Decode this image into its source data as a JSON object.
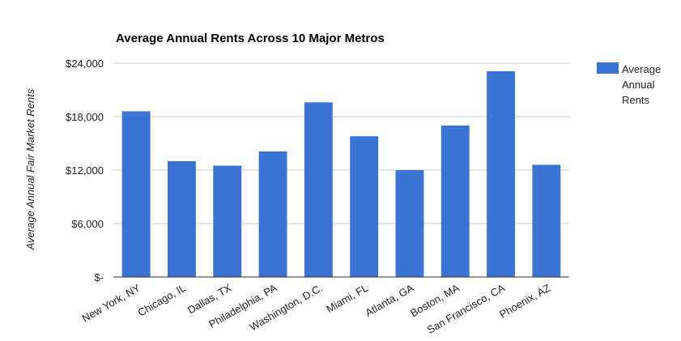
{
  "chart_data": {
    "type": "bar",
    "title": "Average Annual Rents Across 10 Major Metros",
    "xlabel": "",
    "ylabel": "Average Annual Fair Market Rents",
    "categories": [
      "New York, NY",
      "Chicago, IL",
      "Dallas, TX",
      "Philadelphia, PA",
      "Washington, D.C.",
      "Miami, FL",
      "Atlanta, GA",
      "Boston, MA",
      "San Francisco, CA",
      "Phoenix, AZ"
    ],
    "series": [
      {
        "name": "Average Annual Rents",
        "legend_lines": [
          "Average",
          "Annual",
          "Rents"
        ],
        "color": "#3c74d6",
        "values": [
          18600,
          13000,
          12500,
          14100,
          19600,
          15800,
          12000,
          17000,
          23100,
          12600
        ]
      }
    ],
    "ylim": [
      0,
      24000
    ],
    "yticks": [
      0,
      6000,
      12000,
      18000,
      24000
    ],
    "ytick_labels": [
      "$-",
      "$6,000",
      "$12,000",
      "$18,000",
      "$24,000"
    ],
    "grid": true,
    "legend_position": "right"
  }
}
